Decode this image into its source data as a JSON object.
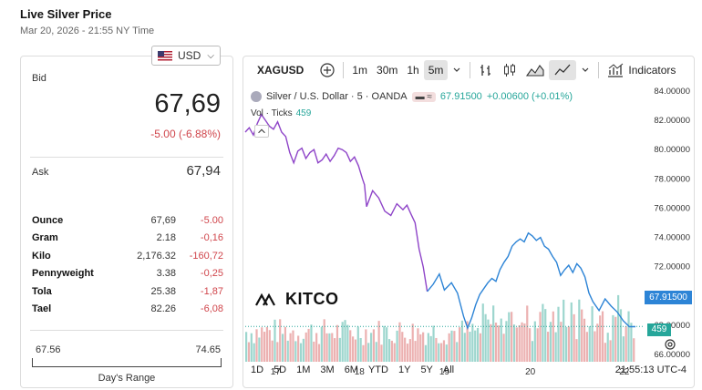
{
  "header": {
    "title": "Live Silver Price",
    "date": "Mar 20, 2026 - 21:55 NY Time"
  },
  "currency": {
    "selected": "USD"
  },
  "quote": {
    "bid_label": "Bid",
    "bid": "67,69",
    "change": "-5.00 (-6.88%)",
    "ask_label": "Ask",
    "ask": "67,94"
  },
  "units": [
    {
      "name": "Ounce",
      "price": "67,69",
      "change": "-5.00"
    },
    {
      "name": "Gram",
      "price": "2.18",
      "change": "-0,16"
    },
    {
      "name": "Kilo",
      "price": "2,176.32",
      "change": "-160,72"
    },
    {
      "name": "Pennyweight",
      "price": "3.38",
      "change": "-0,25"
    },
    {
      "name": "Tola",
      "price": "25.38",
      "change": "-1,87"
    },
    {
      "name": "Tael",
      "price": "82.26",
      "change": "-6,08"
    }
  ],
  "days_range": {
    "low": "67.56",
    "high": "74.65",
    "label": "Day's Range"
  },
  "chart_toolbar": {
    "symbol": "XAGUSD",
    "intervals": [
      "1m",
      "30m",
      "1h",
      "5m"
    ],
    "active_interval": "5m",
    "indicators_label": "Indicators"
  },
  "chart_legend": {
    "title": "Silver / U.S. Dollar · 5 · OANDA",
    "last": "67.91500",
    "change": "+0.00600 (+0.01%)",
    "vol_label": "Vol · Ticks",
    "vol_value": "459"
  },
  "watermark": "KITCO",
  "price_tag": "67.91500",
  "vol_tag": "459",
  "range_buttons": [
    "1D",
    "5D",
    "1M",
    "3M",
    "6M",
    "YTD",
    "1Y",
    "5Y",
    "All"
  ],
  "time_readout": "21:55:13 UTC-4",
  "colors": {
    "down": "#d0464c",
    "up_vol": "#26a69a",
    "line_blue": "#2d84d6",
    "line_purple": "#8e44c8"
  },
  "chart_data": {
    "type": "line",
    "title": "Silver / U.S. Dollar · 5 · OANDA",
    "x_ticks": [
      "17",
      "18",
      "19",
      "20",
      "22"
    ],
    "y_ticks": [
      "84.00000",
      "82.00000",
      "80.00000",
      "78.00000",
      "76.00000",
      "74.00000",
      "72.00000",
      "70.00000",
      "68.00000",
      "66.00000"
    ],
    "ylim": [
      65.5,
      84.5
    ],
    "series": [
      {
        "x": [
          0,
          0.04,
          0.08,
          0.12,
          0.16,
          0.2,
          0.24,
          0.28,
          0.32,
          0.36,
          0.4,
          0.44,
          0.48,
          0.52,
          0.56,
          0.6,
          0.64,
          0.68,
          0.72,
          0.76,
          0.8,
          0.84,
          0.88,
          0.92,
          0.96,
          1.0,
          1.04,
          1.08,
          1.12,
          1.16,
          1.18,
          1.2,
          1.26,
          1.32,
          1.38,
          1.44,
          1.5,
          1.56,
          1.6,
          1.64,
          1.68,
          1.72,
          1.76,
          1.8,
          1.86,
          1.92,
          1.97,
          2.04,
          2.1,
          2.16,
          2.2,
          2.24,
          2.28,
          2.32,
          2.36,
          2.4,
          2.44,
          2.48,
          2.52,
          2.56,
          2.6,
          2.64,
          2.68,
          2.72,
          2.76,
          2.8,
          2.84,
          2.88,
          2.92,
          2.96,
          3.0,
          3.04,
          3.08,
          3.12,
          3.16,
          3.2,
          3.24,
          3.28,
          3.32,
          3.36,
          3.4,
          3.44,
          3.5,
          3.56,
          3.62,
          3.68,
          3.74,
          3.8,
          3.86
        ],
        "y": [
          81.2,
          81.5,
          81.0,
          81.8,
          82.4,
          82.0,
          81.6,
          81.4,
          81.9,
          81.2,
          80.9,
          79.8,
          79.1,
          79.9,
          80.1,
          79.4,
          79.8,
          80.0,
          79.1,
          79.3,
          79.7,
          79.2,
          79.6,
          80.1,
          80.0,
          79.8,
          79.2,
          79.5,
          78.9,
          78.0,
          77.6,
          76.1,
          77.2,
          76.7,
          75.8,
          75.5,
          76.3,
          75.9,
          76.2,
          75.6,
          75.0,
          73.2,
          72.0,
          70.3,
          70.8,
          71.5,
          70.4,
          70.9,
          70.2,
          68.6,
          67.8,
          68.5,
          69.4,
          70.1,
          70.5,
          70.9,
          71.2,
          71.0,
          71.8,
          72.3,
          72.7,
          73.4,
          73.7,
          73.9,
          73.7,
          74.3,
          74.1,
          73.8,
          74.0,
          73.4,
          73.2,
          72.7,
          72.3,
          71.4,
          71.8,
          72.1,
          71.6,
          72.2,
          71.9,
          71.3,
          70.2,
          69.6,
          69.0,
          69.8,
          69.3,
          68.9,
          68.3,
          67.9,
          67.9
        ]
      }
    ],
    "volume_label": "Vol · Ticks",
    "volume_last": 459
  }
}
